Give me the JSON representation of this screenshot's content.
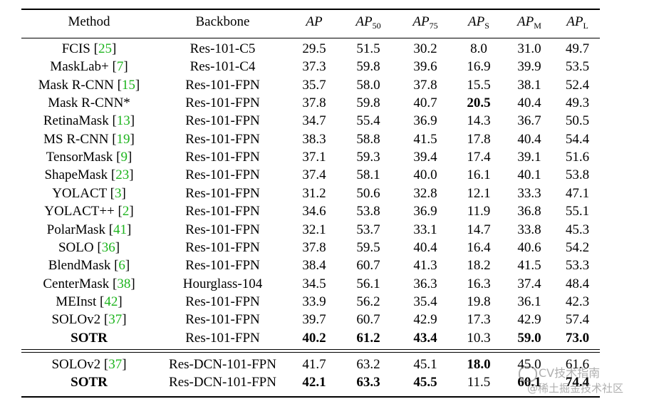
{
  "header": {
    "method": "Method",
    "backbone": "Backbone",
    "ap": "AP",
    "ap50": {
      "base": "AP",
      "sub": "50"
    },
    "ap75": {
      "base": "AP",
      "sub": "75"
    },
    "aps": {
      "base": "AP",
      "sub": "S"
    },
    "apm": {
      "base": "AP",
      "sub": "M"
    },
    "apl": {
      "base": "AP",
      "sub": "L"
    }
  },
  "rows": [
    {
      "name": "FCIS",
      "ref": "25",
      "backbone": "Res-101-C5",
      "ap": "29.5",
      "ap50": "51.5",
      "ap75": "30.2",
      "aps": "8.0",
      "apm": "31.0",
      "apl": "49.7"
    },
    {
      "name": "MaskLab+",
      "ref": "7",
      "backbone": "Res-101-C4",
      "ap": "37.3",
      "ap50": "59.8",
      "ap75": "39.6",
      "aps": "16.9",
      "apm": "39.9",
      "apl": "53.5"
    },
    {
      "name": "Mask R-CNN",
      "ref": "15",
      "backbone": "Res-101-FPN",
      "ap": "35.7",
      "ap50": "58.0",
      "ap75": "37.8",
      "aps": "15.5",
      "apm": "38.1",
      "apl": "52.4"
    },
    {
      "name": "Mask R-CNN*",
      "ref": "",
      "backbone": "Res-101-FPN",
      "ap": "37.8",
      "ap50": "59.8",
      "ap75": "40.7",
      "aps": "20.5",
      "apm": "40.4",
      "apl": "49.3"
    },
    {
      "name": "RetinaMask",
      "ref": "13",
      "backbone": "Res-101-FPN",
      "ap": "34.7",
      "ap50": "55.4",
      "ap75": "36.9",
      "aps": "14.3",
      "apm": "36.7",
      "apl": "50.5"
    },
    {
      "name": "MS R-CNN",
      "ref": "19",
      "backbone": "Res-101-FPN",
      "ap": "38.3",
      "ap50": "58.8",
      "ap75": "41.5",
      "aps": "17.8",
      "apm": "40.4",
      "apl": "54.4"
    },
    {
      "name": "TensorMask",
      "ref": "9",
      "backbone": "Res-101-FPN",
      "ap": "37.1",
      "ap50": "59.3",
      "ap75": "39.4",
      "aps": "17.4",
      "apm": "39.1",
      "apl": "51.6"
    },
    {
      "name": "ShapeMask",
      "ref": "23",
      "backbone": "Res-101-FPN",
      "ap": "37.4",
      "ap50": "58.1",
      "ap75": "40.0",
      "aps": "16.1",
      "apm": "40.1",
      "apl": "53.8"
    },
    {
      "name": "YOLACT",
      "ref": "3",
      "backbone": "Res-101-FPN",
      "ap": "31.2",
      "ap50": "50.6",
      "ap75": "32.8",
      "aps": "12.1",
      "apm": "33.3",
      "apl": "47.1"
    },
    {
      "name": "YOLACT++",
      "ref": "2",
      "backbone": "Res-101-FPN",
      "ap": "34.6",
      "ap50": "53.8",
      "ap75": "36.9",
      "aps": "11.9",
      "apm": "36.8",
      "apl": "55.1"
    },
    {
      "name": "PolarMask",
      "ref": "41",
      "backbone": "Res-101-FPN",
      "ap": "32.1",
      "ap50": "53.7",
      "ap75": "33.1",
      "aps": "14.7",
      "apm": "33.8",
      "apl": "45.3"
    },
    {
      "name": "SOLO",
      "ref": "36",
      "backbone": "Res-101-FPN",
      "ap": "37.8",
      "ap50": "59.5",
      "ap75": "40.4",
      "aps": "16.4",
      "apm": "40.6",
      "apl": "54.2"
    },
    {
      "name": "BlendMask",
      "ref": "6",
      "backbone": "Res-101-FPN",
      "ap": "38.4",
      "ap50": "60.7",
      "ap75": "41.3",
      "aps": "18.2",
      "apm": "41.5",
      "apl": "53.3"
    },
    {
      "name": "CenterMask",
      "ref": "38",
      "backbone": "Hourglass-104",
      "ap": "34.5",
      "ap50": "56.1",
      "ap75": "36.3",
      "aps": "16.3",
      "apm": "37.4",
      "apl": "48.4"
    },
    {
      "name": "MEInst",
      "ref": "42",
      "backbone": "Res-101-FPN",
      "ap": "33.9",
      "ap50": "56.2",
      "ap75": "35.4",
      "aps": "19.8",
      "apm": "36.1",
      "apl": "42.3"
    },
    {
      "name": "SOLOv2",
      "ref": "37",
      "backbone": "Res-101-FPN",
      "ap": "39.7",
      "ap50": "60.7",
      "ap75": "42.9",
      "aps": "17.3",
      "apm": "42.9",
      "apl": "57.4"
    },
    {
      "name": "SOTR",
      "ref": "",
      "backbone": "Res-101-FPN",
      "ap": "40.2",
      "ap50": "61.2",
      "ap75": "43.4",
      "aps": "10.3",
      "apm": "59.0",
      "apl": "73.0"
    }
  ],
  "rows2": [
    {
      "name": "SOLOv2",
      "ref": "37",
      "backbone": "Res-DCN-101-FPN",
      "ap": "41.7",
      "ap50": "63.2",
      "ap75": "45.1",
      "aps": "18.0",
      "apm": "45.0",
      "apl": "61.6"
    },
    {
      "name": "SOTR",
      "ref": "",
      "backbone": "Res-DCN-101-FPN",
      "ap": "42.1",
      "ap50": "63.3",
      "ap75": "45.5",
      "aps": "11.5",
      "apm": "60.1",
      "apl": "74.4"
    }
  ],
  "watermark": {
    "line1": "CV技术指南",
    "line2": "@稀土掘金技术社区"
  }
}
